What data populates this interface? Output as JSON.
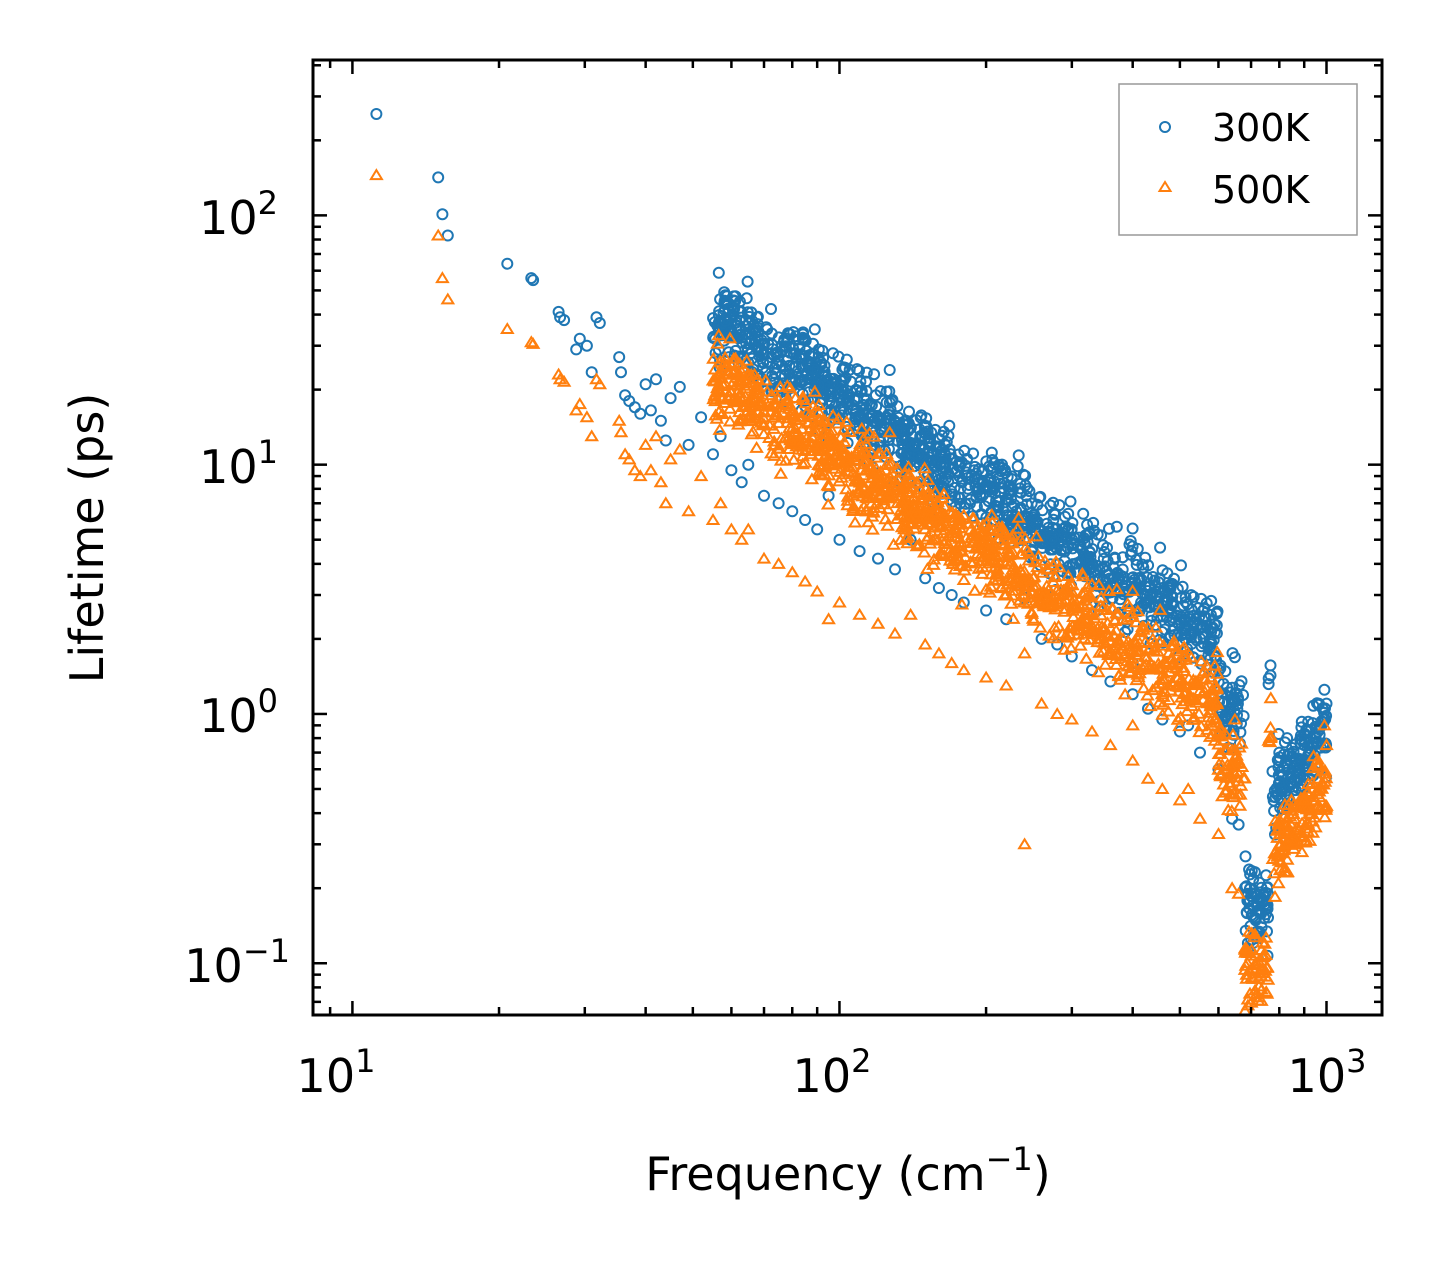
{
  "chart_data": {
    "type": "scatter",
    "title": "",
    "xlabel": "Frequency (cm",
    "xlabel_sup": "−1",
    "xlabel_close": ")",
    "ylabel": "Lifetime (ps)",
    "xscale": "log",
    "yscale": "log",
    "xlim": [
      8.3,
      1300
    ],
    "ylim": [
      0.062,
      420
    ],
    "x_ticks": [
      {
        "value": 10,
        "base": "10",
        "exp": "1"
      },
      {
        "value": 100,
        "base": "10",
        "exp": "2"
      },
      {
        "value": 1000,
        "base": "10",
        "exp": "3"
      }
    ],
    "y_ticks": [
      {
        "value": 0.1,
        "base": "10",
        "exp": "−1"
      },
      {
        "value": 1,
        "base": "10",
        "exp": "0"
      },
      {
        "value": 10,
        "base": "10",
        "exp": "1"
      },
      {
        "value": 100,
        "base": "10",
        "exp": "2"
      }
    ],
    "legend_position": "top-right",
    "series": [
      {
        "name": "300K",
        "marker": "circle",
        "color": "#1f77b4",
        "points": [
          [
            11.2,
            255
          ],
          [
            15,
            142
          ],
          [
            15.3,
            101
          ],
          [
            15.7,
            83
          ],
          [
            20.8,
            64
          ],
          [
            23.3,
            56
          ],
          [
            23.5,
            55
          ],
          [
            26.5,
            41
          ],
          [
            26.7,
            39
          ],
          [
            27.2,
            38
          ],
          [
            28.8,
            29
          ],
          [
            29.3,
            32
          ],
          [
            30.3,
            30
          ],
          [
            31,
            23.5
          ],
          [
            31.7,
            39
          ],
          [
            32.2,
            37
          ],
          [
            35.3,
            27
          ],
          [
            35.6,
            23.5
          ],
          [
            36.3,
            19
          ],
          [
            37,
            18
          ],
          [
            38,
            17
          ],
          [
            39,
            16
          ],
          [
            40,
            21
          ],
          [
            41,
            16.5
          ],
          [
            42,
            22
          ],
          [
            43,
            15
          ],
          [
            44,
            12.5
          ],
          [
            45,
            18.5
          ],
          [
            47,
            20.5
          ],
          [
            49,
            12
          ],
          [
            52,
            15.5
          ],
          [
            55,
            11
          ],
          [
            57,
            13
          ],
          [
            60,
            9.5
          ],
          [
            63,
            8.5
          ],
          [
            65,
            10
          ],
          [
            70,
            7.5
          ],
          [
            75,
            7
          ],
          [
            80,
            6.5
          ],
          [
            85,
            6
          ],
          [
            90,
            5.5
          ],
          [
            95,
            7.5
          ],
          [
            100,
            5
          ],
          [
            110,
            4.5
          ],
          [
            120,
            4.2
          ],
          [
            130,
            3.8
          ],
          [
            140,
            5
          ],
          [
            150,
            3.5
          ],
          [
            160,
            3.2
          ],
          [
            170,
            3
          ],
          [
            180,
            2.8
          ],
          [
            200,
            2.6
          ],
          [
            220,
            2.4
          ],
          [
            240,
            3.2
          ],
          [
            240,
            2.9
          ],
          [
            260,
            2
          ],
          [
            280,
            1.9
          ],
          [
            300,
            1.7
          ],
          [
            330,
            1.5
          ],
          [
            360,
            1.35
          ],
          [
            400,
            1.6
          ],
          [
            400,
            1.2
          ],
          [
            430,
            1.05
          ],
          [
            460,
            0.95
          ],
          [
            500,
            0.85
          ],
          [
            520,
            0.9
          ],
          [
            550,
            0.7
          ],
          [
            600,
            0.6
          ],
          [
            640,
            0.38
          ],
          [
            660,
            0.36
          ],
          [
            690,
            0.19
          ],
          [
            720,
            0.17
          ],
          [
            740,
            0.18
          ],
          [
            800,
            0.7
          ],
          [
            830,
            0.8
          ],
          [
            860,
            0.65
          ],
          [
            900,
            0.75
          ],
          [
            960,
            0.85
          ],
          [
            990,
            1.25
          ],
          [
            1000,
            1.1
          ]
        ]
      },
      {
        "name": "500K",
        "marker": "triangle",
        "color": "#ff7f0e",
        "points": [
          [
            11.2,
            145
          ],
          [
            15,
            83
          ],
          [
            15.3,
            56
          ],
          [
            15.7,
            46
          ],
          [
            20.8,
            35
          ],
          [
            23.3,
            31
          ],
          [
            23.5,
            30.5
          ],
          [
            26.5,
            23
          ],
          [
            26.7,
            22
          ],
          [
            27.2,
            21.5
          ],
          [
            28.8,
            16.5
          ],
          [
            29.3,
            17.5
          ],
          [
            30.3,
            15.5
          ],
          [
            31,
            13
          ],
          [
            31.7,
            22
          ],
          [
            32.2,
            21
          ],
          [
            35.3,
            15
          ],
          [
            35.6,
            13.5
          ],
          [
            36.3,
            11
          ],
          [
            37,
            10.5
          ],
          [
            38,
            9.5
          ],
          [
            39,
            9
          ],
          [
            40,
            12
          ],
          [
            41,
            9.5
          ],
          [
            42,
            13
          ],
          [
            43,
            8.5
          ],
          [
            44,
            7
          ],
          [
            45,
            10.5
          ],
          [
            47,
            11.5
          ],
          [
            49,
            6.5
          ],
          [
            52,
            9
          ],
          [
            55,
            6
          ],
          [
            57,
            7
          ],
          [
            60,
            5.5
          ],
          [
            63,
            5
          ],
          [
            65,
            5.5
          ],
          [
            70,
            4.2
          ],
          [
            75,
            4
          ],
          [
            80,
            3.7
          ],
          [
            85,
            3.4
          ],
          [
            90,
            3.1
          ],
          [
            95,
            2.4
          ],
          [
            100,
            2.8
          ],
          [
            110,
            2.5
          ],
          [
            120,
            2.3
          ],
          [
            130,
            2.1
          ],
          [
            140,
            2.5
          ],
          [
            150,
            1.9
          ],
          [
            160,
            1.75
          ],
          [
            170,
            1.6
          ],
          [
            180,
            1.5
          ],
          [
            200,
            1.4
          ],
          [
            220,
            1.3
          ],
          [
            240,
            1.75
          ],
          [
            240,
            0.3
          ],
          [
            260,
            1.1
          ],
          [
            280,
            1
          ],
          [
            300,
            0.95
          ],
          [
            330,
            0.85
          ],
          [
            360,
            0.75
          ],
          [
            400,
            0.9
          ],
          [
            400,
            0.65
          ],
          [
            430,
            0.55
          ],
          [
            460,
            0.5
          ],
          [
            500,
            0.45
          ],
          [
            520,
            0.5
          ],
          [
            550,
            0.38
          ],
          [
            600,
            0.33
          ],
          [
            640,
            0.2
          ],
          [
            660,
            0.19
          ],
          [
            690,
            0.11
          ],
          [
            720,
            0.1
          ],
          [
            740,
            0.095
          ],
          [
            800,
            0.35
          ],
          [
            830,
            0.42
          ],
          [
            860,
            0.38
          ],
          [
            900,
            0.45
          ],
          [
            960,
            0.55
          ],
          [
            990,
            0.9
          ],
          [
            1000,
            0.75
          ]
        ]
      }
    ],
    "scatter_cloud": {
      "note": "dense band of points around the power-law trend",
      "x_range": [
        55,
        1000
      ],
      "300K_offset_log10": 0.0,
      "500K_offset_log10": -0.25
    }
  }
}
